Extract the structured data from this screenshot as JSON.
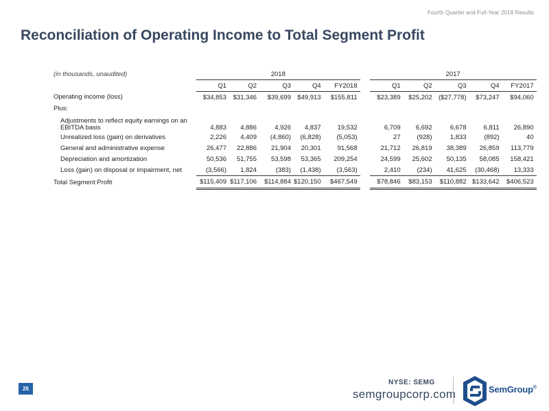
{
  "header": {
    "note": "Fourth Quarter and Full-Year 2018 Results",
    "title": "Reconciliation of Operating Income to Total Segment Profit"
  },
  "table": {
    "units_label": "(in thousands, unaudited)",
    "years": [
      "2018",
      "2017"
    ],
    "columns_2018": [
      "Q1",
      "Q2",
      "Q3",
      "Q4",
      "FY2018"
    ],
    "columns_2017": [
      "Q1",
      "Q2",
      "Q3",
      "Q4",
      "FY2017"
    ],
    "rows": [
      {
        "label": "Operating income (loss)",
        "v2018": [
          "$34,853",
          "$31,346",
          "$39,699",
          "$49,913",
          "$155,811"
        ],
        "v2017": [
          "$23,389",
          "$25,202",
          "($27,778)",
          "$73,247",
          "$94,060"
        ]
      },
      {
        "label": "Plus:",
        "v2018": [
          "",
          "",
          "",
          "",
          ""
        ],
        "v2017": [
          "",
          "",
          "",
          "",
          ""
        ]
      },
      {
        "label": "Adjustments to reflect equity earnings on an EBITDA basis",
        "v2018": [
          "4,883",
          "4,886",
          "4,926",
          "4,837",
          "19,532"
        ],
        "v2017": [
          "6,709",
          "6,692",
          "6,678",
          "6,811",
          "26,890"
        ]
      },
      {
        "label": "Unrealized loss (gain) on derivatives",
        "v2018": [
          "2,226",
          "4,409",
          "(4,860)",
          "(6,828)",
          "(5,053)"
        ],
        "v2017": [
          "27",
          "(928)",
          "1,833",
          "(892)",
          "40"
        ]
      },
      {
        "label": "General and administrative expense",
        "v2018": [
          "26,477",
          "22,886",
          "21,904",
          "20,301",
          "91,568"
        ],
        "v2017": [
          "21,712",
          "26,819",
          "38,389",
          "26,859",
          "113,779"
        ]
      },
      {
        "label": "Depreciation and amortization",
        "v2018": [
          "50,536",
          "51,755",
          "53,598",
          "53,365",
          "209,254"
        ],
        "v2017": [
          "24,599",
          "25,602",
          "50,135",
          "58,085",
          "158,421"
        ]
      },
      {
        "label": "Loss (gain) on disposal or impairment, net",
        "v2018": [
          "(3,566)",
          "1,824",
          "(383)",
          "(1,438)",
          "(3,563)"
        ],
        "v2017": [
          "2,410",
          "(234)",
          "41,625",
          "(30,468)",
          "13,333"
        ]
      },
      {
        "label": "Total Segment Profit",
        "v2018": [
          "$115,409",
          "$117,106",
          "$114,884",
          "$120,150",
          "$467,549"
        ],
        "v2017": [
          "$78,846",
          "$83,153",
          "$110,882",
          "$133,642",
          "$406,523"
        ]
      }
    ]
  },
  "footer": {
    "page_number": "26",
    "ticker": "NYSE: SEMG",
    "website": "semgroupcorp.com",
    "logo_text": "SemGroup",
    "logo_mark": "®"
  },
  "colors": {
    "title": "#37485f",
    "accent_blue": "#2563a8",
    "logo_blue": "#1f4e8c"
  }
}
